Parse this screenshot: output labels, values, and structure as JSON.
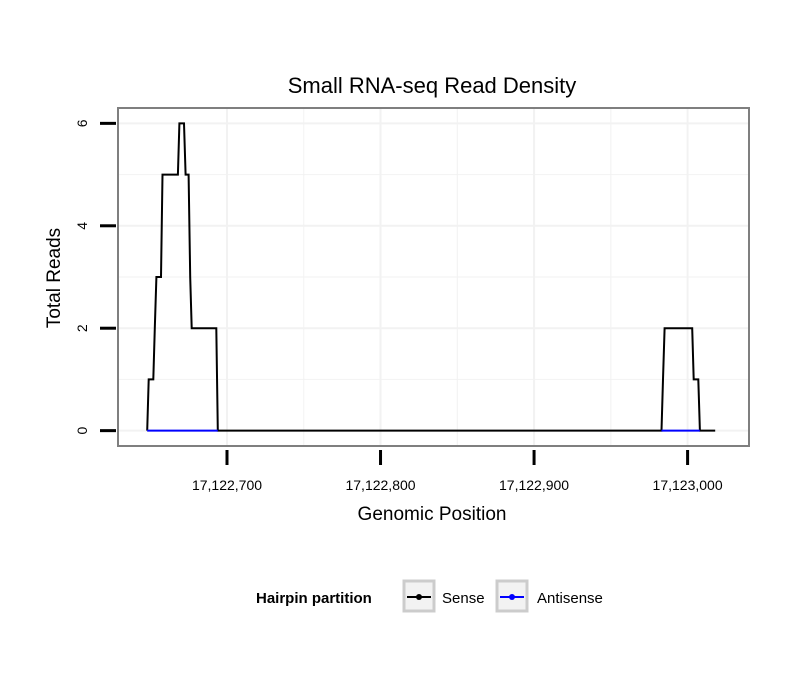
{
  "chart_data": {
    "type": "line",
    "title": "Small RNA-seq Read Density",
    "xlabel": "Genomic Position",
    "ylabel": "Total Reads",
    "xlim": [
      17122629,
      17123040
    ],
    "ylim": [
      -0.3,
      6.3
    ],
    "x_ticks": [
      17122700,
      17122800,
      17122900,
      17123000
    ],
    "x_tick_labels": [
      "17,122,700",
      "17,122,800",
      "17,122,900",
      "17,123,000"
    ],
    "y_ticks": [
      0,
      2,
      4,
      6
    ],
    "y_tick_labels": [
      "0",
      "2",
      "4",
      "6"
    ],
    "grid": true,
    "legend": {
      "title": "Hairpin partition",
      "position": "bottom"
    },
    "series": [
      {
        "name": "Sense",
        "color": "#000000",
        "points": [
          [
            17122648,
            0
          ],
          [
            17122649,
            1
          ],
          [
            17122652,
            1
          ],
          [
            17122653,
            2
          ],
          [
            17122654,
            3
          ],
          [
            17122657,
            3
          ],
          [
            17122658,
            5
          ],
          [
            17122668,
            5
          ],
          [
            17122669,
            6
          ],
          [
            17122672,
            6
          ],
          [
            17122673,
            5
          ],
          [
            17122675,
            5
          ],
          [
            17122676,
            3
          ],
          [
            17122677,
            2
          ],
          [
            17122693,
            2
          ],
          [
            17122694,
            0
          ],
          [
            17122983,
            0
          ],
          [
            17122984,
            1
          ],
          [
            17122985,
            2
          ],
          [
            17123003,
            2
          ],
          [
            17123004,
            1
          ],
          [
            17123007,
            1
          ],
          [
            17123008,
            0
          ],
          [
            17123018,
            0
          ]
        ]
      },
      {
        "name": "Antisense",
        "color": "#0000ff",
        "segments": [
          [
            [
              17122648,
              0
            ],
            [
              17122694,
              0
            ]
          ],
          [
            [
              17122983,
              0
            ],
            [
              17123008,
              0
            ]
          ]
        ]
      }
    ]
  }
}
